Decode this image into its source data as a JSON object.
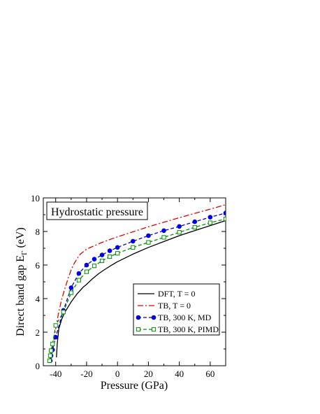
{
  "chart_data": {
    "type": "line",
    "annotation": "Hydrostatic pressure",
    "xlabel": "Pressure  (GPa)",
    "ylabel_main": "Direct  band  gap   E",
    "ylabel_sub": "Γ",
    "ylabel_unit": "  (eV)",
    "xlim": [
      -48,
      70
    ],
    "ylim": [
      0,
      10
    ],
    "xticks": [
      -40,
      -20,
      0,
      20,
      40,
      60
    ],
    "xtick_labels": [
      "-40",
      "-20",
      "0",
      "20",
      "40",
      "60"
    ],
    "yticks": [
      0,
      2,
      4,
      6,
      8,
      10
    ],
    "ytick_labels": [
      "0",
      "2",
      "4",
      "6",
      "8",
      "10"
    ],
    "legend_position": "lower-right",
    "series": [
      {
        "name": "DFT, T = 0",
        "color": "#000000",
        "style": "solid",
        "marker": "none",
        "x": [
          -39.5,
          -39,
          -38,
          -36,
          -34,
          -32,
          -30,
          -28,
          -26,
          -24,
          -22,
          -20,
          -16,
          -12,
          -8,
          -4,
          0,
          10,
          20,
          30,
          40,
          50,
          60,
          70
        ],
        "y": [
          0.5,
          1.3,
          2.2,
          2.8,
          3.2,
          3.5,
          3.8,
          4.05,
          4.3,
          4.5,
          4.7,
          4.85,
          5.2,
          5.5,
          5.75,
          5.98,
          6.2,
          6.65,
          7.05,
          7.4,
          7.75,
          8.05,
          8.35,
          8.65
        ]
      },
      {
        "name": "TB,   T = 0",
        "color": "#e00000",
        "style": "dashdot",
        "marker": "none",
        "x": [
          -43,
          -42,
          -40,
          -38,
          -36,
          -34,
          -32,
          -30,
          -28,
          -26,
          -24,
          -22,
          -20,
          -15,
          -10,
          -5,
          0,
          10,
          20,
          30,
          40,
          50,
          60,
          70
        ],
        "y": [
          0.2,
          1.0,
          2.2,
          3.2,
          4.0,
          4.6,
          5.2,
          5.7,
          6.1,
          6.4,
          6.65,
          6.8,
          6.95,
          7.15,
          7.35,
          7.52,
          7.68,
          7.98,
          8.28,
          8.55,
          8.82,
          9.08,
          9.33,
          9.6
        ]
      },
      {
        "name": "TB, 300 K,  MD",
        "color": "#0000e0",
        "style": "dashed",
        "marker": "circle",
        "x": [
          -43.5,
          -43,
          -42,
          -40,
          -35,
          -30,
          -25,
          -20,
          -15,
          -10,
          -5,
          0,
          10,
          20,
          30,
          40,
          50,
          60,
          70
        ],
        "y": [
          0.3,
          0.6,
          0.95,
          1.7,
          3.3,
          4.65,
          5.5,
          6.0,
          6.35,
          6.6,
          6.85,
          7.05,
          7.42,
          7.75,
          8.05,
          8.3,
          8.58,
          8.85,
          9.1
        ]
      },
      {
        "name": "TB, 300 K, PIMD",
        "color": "#009000",
        "style": "dashed",
        "marker": "square",
        "x": [
          -44,
          -43.5,
          -43,
          -42,
          -40,
          -35,
          -30,
          -25,
          -20,
          -15,
          -10,
          -5,
          0,
          10,
          20,
          30,
          40,
          50,
          60,
          70
        ],
        "y": [
          0.3,
          0.6,
          0.9,
          1.3,
          2.4,
          3.2,
          4.35,
          5.1,
          5.6,
          5.95,
          6.25,
          6.5,
          6.7,
          7.05,
          7.35,
          7.65,
          7.95,
          8.25,
          8.52,
          8.75
        ]
      }
    ]
  }
}
